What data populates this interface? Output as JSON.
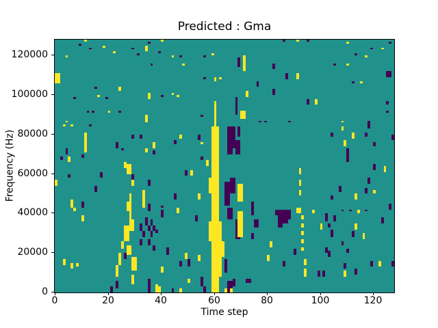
{
  "chart_data": {
    "type": "heatmap",
    "title": "Predicted : Gma",
    "xlabel": "Time step",
    "ylabel": "Frequency (Hz)",
    "x_ticks": [
      0,
      20,
      40,
      60,
      80,
      100,
      120
    ],
    "y_ticks": [
      0,
      20000,
      40000,
      60000,
      80000,
      100000,
      120000
    ],
    "x_range": [
      0,
      128
    ],
    "y_range": [
      0,
      128000
    ],
    "grid": [
      128,
      128
    ],
    "legend": "none",
    "grid_lines": false,
    "colors": {
      "background": "#21918c",
      "high": "#fde725",
      "low": "#440154",
      "spine": "#000000",
      "figure_background": "#ffffff"
    },
    "value_levels": {
      "low": 0,
      "mid": 0.5,
      "high": 1
    },
    "cells_note": "cells as [x_bin, y_bin, w, h]; y_bin 0 = 0 Hz (bottom), 1 bin = 1000 Hz; mid-level teal is the background",
    "cells": {
      "high": [
        [
          11,
          127,
          1,
          1
        ],
        [
          18,
          124,
          1,
          1
        ],
        [
          22,
          121,
          1,
          1
        ],
        [
          4,
          119,
          1,
          1
        ],
        [
          0,
          106,
          2,
          5
        ],
        [
          24,
          102,
          1,
          2
        ],
        [
          16,
          99,
          1,
          1
        ],
        [
          20,
          91,
          1,
          1
        ],
        [
          4,
          86,
          1,
          1
        ],
        [
          40,
          127,
          1,
          1
        ],
        [
          34,
          122,
          1,
          3
        ],
        [
          44,
          119,
          1,
          1
        ],
        [
          48,
          115,
          1,
          1
        ],
        [
          59,
          120,
          1,
          1
        ],
        [
          60,
          107,
          1,
          2
        ],
        [
          62,
          108,
          1,
          1
        ],
        [
          35,
          98,
          1,
          3
        ],
        [
          44,
          100,
          1,
          1
        ],
        [
          46,
          99,
          1,
          1
        ],
        [
          60,
          86,
          1,
          11
        ],
        [
          34,
          86,
          1,
          4
        ],
        [
          91,
          127,
          1,
          1
        ],
        [
          71,
          112,
          1,
          8
        ],
        [
          91,
          108,
          1,
          3
        ],
        [
          72,
          99,
          1,
          3
        ],
        [
          98,
          95,
          1,
          3
        ],
        [
          70,
          88,
          2,
          4
        ],
        [
          110,
          126,
          1,
          1
        ],
        [
          123,
          123,
          1,
          1
        ],
        [
          117,
          119,
          1,
          1
        ],
        [
          110,
          115,
          1,
          1
        ],
        [
          115,
          106,
          1,
          1
        ],
        [
          108,
          86,
          1,
          1
        ],
        [
          108,
          82,
          1,
          2
        ],
        [
          3,
          84,
          1,
          1
        ],
        [
          6,
          84,
          1,
          1
        ],
        [
          11,
          71,
          1,
          10
        ],
        [
          5,
          66,
          1,
          3
        ],
        [
          26,
          63,
          1,
          3
        ],
        [
          27,
          60,
          2,
          5
        ],
        [
          0,
          54,
          1,
          3
        ],
        [
          29,
          54,
          1,
          3
        ],
        [
          28,
          46,
          1,
          4
        ],
        [
          33,
          43,
          1,
          9
        ],
        [
          6,
          43,
          1,
          4
        ],
        [
          47,
          78,
          1,
          2
        ],
        [
          37,
          73,
          1,
          3
        ],
        [
          34,
          71,
          1,
          2
        ],
        [
          55,
          75,
          1,
          1
        ],
        [
          57,
          64,
          1,
          3
        ],
        [
          51,
          59,
          1,
          3
        ],
        [
          54,
          47,
          1,
          3
        ],
        [
          46,
          40,
          1,
          3
        ],
        [
          112,
          78,
          1,
          3
        ],
        [
          109,
          74,
          1,
          3
        ],
        [
          124,
          61,
          1,
          3
        ],
        [
          120,
          50,
          1,
          2
        ],
        [
          113,
          47,
          1,
          3
        ],
        [
          92,
          60,
          1,
          3
        ],
        [
          92,
          54,
          1,
          3
        ],
        [
          92,
          49,
          1,
          3
        ],
        [
          59,
          44,
          3,
          40
        ],
        [
          60,
          84,
          1,
          12
        ],
        [
          58,
          50,
          1,
          8
        ],
        [
          59,
          0,
          3,
          44
        ],
        [
          62,
          8,
          1,
          28
        ],
        [
          58,
          26,
          1,
          10
        ],
        [
          63,
          18,
          1,
          8
        ],
        [
          64,
          0,
          1,
          2
        ],
        [
          66,
          0,
          1,
          2
        ],
        [
          69,
          28,
          2,
          13
        ],
        [
          69,
          46,
          2,
          9
        ],
        [
          93,
          37,
          1,
          2
        ],
        [
          93,
          33,
          1,
          2
        ],
        [
          93,
          29,
          1,
          2
        ],
        [
          93,
          25,
          1,
          2
        ],
        [
          93,
          21,
          1,
          2
        ],
        [
          94,
          14,
          1,
          3
        ],
        [
          94,
          8,
          1,
          2
        ],
        [
          91,
          40,
          2,
          3
        ],
        [
          97,
          40,
          1,
          2
        ],
        [
          100,
          32,
          1,
          3
        ],
        [
          81,
          23,
          1,
          3
        ],
        [
          80,
          16,
          1,
          3
        ],
        [
          94,
          9,
          1,
          3
        ],
        [
          40,
          10,
          1,
          3
        ],
        [
          49,
          17,
          1,
          3
        ],
        [
          54,
          16,
          1,
          3
        ],
        [
          50,
          5,
          1,
          2
        ],
        [
          39,
          0,
          1,
          3
        ],
        [
          47,
          0,
          1,
          2
        ],
        [
          114,
          40,
          1,
          2
        ],
        [
          113,
          32,
          1,
          3
        ],
        [
          116,
          27,
          1,
          3
        ],
        [
          109,
          8,
          1,
          3
        ],
        [
          122,
          13,
          1,
          3
        ],
        [
          3,
          14,
          1,
          3
        ],
        [
          6,
          12,
          1,
          3
        ],
        [
          8,
          13,
          1,
          2
        ],
        [
          7,
          41,
          1,
          2
        ],
        [
          10,
          36,
          1,
          3
        ],
        [
          27,
          41,
          2,
          5
        ],
        [
          28,
          35,
          1,
          6
        ],
        [
          28,
          31,
          2,
          6
        ],
        [
          26,
          26,
          2,
          8
        ],
        [
          25,
          22,
          1,
          4
        ],
        [
          27,
          19,
          2,
          5
        ],
        [
          24,
          14,
          1,
          6
        ],
        [
          29,
          11,
          2,
          7
        ],
        [
          23,
          8,
          1,
          6
        ],
        [
          29,
          4,
          1,
          5
        ],
        [
          38,
          0,
          1,
          4
        ]
      ],
      "low": [
        [
          9,
          125,
          1,
          1
        ],
        [
          13,
          123,
          1,
          1
        ],
        [
          29,
          123,
          1,
          1
        ],
        [
          31,
          120,
          1,
          1
        ],
        [
          15,
          103,
          1,
          1
        ],
        [
          7,
          98,
          1,
          1
        ],
        [
          19,
          98,
          1,
          1
        ],
        [
          12,
          91,
          1,
          1
        ],
        [
          14,
          91,
          1,
          1
        ],
        [
          24,
          91,
          1,
          1
        ],
        [
          35,
          126,
          1,
          1
        ],
        [
          39,
          121,
          1,
          1
        ],
        [
          36,
          115,
          1,
          1
        ],
        [
          47,
          119,
          1,
          1
        ],
        [
          56,
          119,
          1,
          1
        ],
        [
          56,
          108,
          1,
          1
        ],
        [
          40,
          99,
          1,
          1
        ],
        [
          55,
          89,
          1,
          1
        ],
        [
          68,
          90,
          1,
          9
        ],
        [
          69,
          114,
          1,
          5
        ],
        [
          86,
          127,
          1,
          1
        ],
        [
          95,
          127,
          1,
          1
        ],
        [
          82,
          113,
          1,
          3
        ],
        [
          87,
          108,
          1,
          3
        ],
        [
          76,
          104,
          1,
          3
        ],
        [
          82,
          100,
          1,
          3
        ],
        [
          95,
          95,
          1,
          3
        ],
        [
          77,
          86,
          1,
          1
        ],
        [
          79,
          86,
          1,
          1
        ],
        [
          88,
          86,
          1,
          1
        ],
        [
          126,
          126,
          1,
          1
        ],
        [
          119,
          123,
          1,
          1
        ],
        [
          113,
          120,
          1,
          1
        ],
        [
          105,
          115,
          1,
          1
        ],
        [
          125,
          109,
          2,
          3
        ],
        [
          112,
          106,
          1,
          1
        ],
        [
          125,
          95,
          1,
          2
        ],
        [
          125,
          91,
          1,
          1
        ],
        [
          118,
          85,
          1,
          2
        ],
        [
          13,
          84,
          1,
          1
        ],
        [
          29,
          78,
          1,
          2
        ],
        [
          32,
          78,
          1,
          2
        ],
        [
          23,
          73,
          1,
          3
        ],
        [
          25,
          72,
          1,
          1
        ],
        [
          4,
          70,
          1,
          3
        ],
        [
          2,
          67,
          1,
          2
        ],
        [
          10,
          68,
          1,
          2
        ],
        [
          17,
          58,
          1,
          3
        ],
        [
          5,
          58,
          1,
          2
        ],
        [
          29,
          57,
          1,
          3
        ],
        [
          15,
          51,
          1,
          3
        ],
        [
          10,
          43,
          1,
          3
        ],
        [
          54,
          77,
          1,
          3
        ],
        [
          45,
          75,
          1,
          2
        ],
        [
          37,
          70,
          1,
          2
        ],
        [
          55,
          67,
          1,
          2
        ],
        [
          49,
          59,
          1,
          3
        ],
        [
          35,
          54,
          1,
          3
        ],
        [
          45,
          47,
          1,
          3
        ],
        [
          40,
          43,
          1,
          1
        ],
        [
          104,
          79,
          1,
          2
        ],
        [
          118,
          83,
          1,
          2
        ],
        [
          117,
          79,
          1,
          2
        ],
        [
          127,
          77,
          1,
          3
        ],
        [
          110,
          66,
          1,
          7
        ],
        [
          120,
          74,
          1,
          2
        ],
        [
          120,
          62,
          1,
          3
        ],
        [
          118,
          55,
          1,
          3
        ],
        [
          117,
          50,
          1,
          3
        ],
        [
          107,
          51,
          1,
          3
        ],
        [
          104,
          47,
          1,
          2
        ],
        [
          126,
          42,
          1,
          3
        ],
        [
          65,
          70,
          2,
          14
        ],
        [
          67,
          73,
          1,
          11
        ],
        [
          68,
          70,
          2,
          7
        ],
        [
          69,
          79,
          1,
          5
        ],
        [
          64,
          44,
          2,
          12
        ],
        [
          66,
          50,
          2,
          8
        ],
        [
          65,
          37,
          2,
          6
        ],
        [
          68,
          27,
          2,
          10
        ],
        [
          64,
          10,
          1,
          7
        ],
        [
          65,
          0,
          2,
          6
        ],
        [
          67,
          3,
          1,
          4
        ],
        [
          74,
          39,
          1,
          7
        ],
        [
          75,
          33,
          2,
          4
        ],
        [
          74,
          27,
          1,
          3
        ],
        [
          72,
          5,
          2,
          2
        ],
        [
          35,
          41,
          1,
          4
        ],
        [
          34,
          34,
          1,
          4
        ],
        [
          36,
          34,
          1,
          3
        ],
        [
          32,
          31,
          1,
          4
        ],
        [
          35,
          31,
          1,
          3
        ],
        [
          37,
          31,
          1,
          3
        ],
        [
          33,
          28,
          1,
          3
        ],
        [
          36,
          28,
          1,
          3
        ],
        [
          32,
          24,
          1,
          3
        ],
        [
          35,
          24,
          1,
          3
        ],
        [
          37,
          21,
          1,
          3
        ],
        [
          38,
          30,
          1,
          2
        ],
        [
          26,
          17,
          1,
          3
        ],
        [
          23,
          2,
          1,
          4
        ],
        [
          21,
          0,
          1,
          3
        ],
        [
          35,
          0,
          1,
          7
        ],
        [
          42,
          19,
          1,
          4
        ],
        [
          47,
          13,
          1,
          3
        ],
        [
          50,
          13,
          1,
          4
        ],
        [
          55,
          3,
          1,
          5
        ],
        [
          44,
          0,
          1,
          2
        ],
        [
          56,
          0,
          1,
          3
        ],
        [
          40,
          38,
          1,
          4
        ],
        [
          53,
          36,
          1,
          3
        ],
        [
          84,
          33,
          2,
          9
        ],
        [
          86,
          35,
          2,
          7
        ],
        [
          88,
          37,
          1,
          5
        ],
        [
          83,
          39,
          1,
          3
        ],
        [
          90,
          19,
          1,
          3
        ],
        [
          86,
          13,
          1,
          3
        ],
        [
          102,
          36,
          1,
          4
        ],
        [
          104,
          28,
          1,
          4
        ],
        [
          102,
          20,
          1,
          3
        ],
        [
          99,
          8,
          1,
          3
        ],
        [
          101,
          8,
          1,
          3
        ],
        [
          108,
          41,
          1,
          1
        ],
        [
          111,
          41,
          1,
          1
        ],
        [
          117,
          41,
          1,
          1
        ],
        [
          105,
          36,
          1,
          3
        ],
        [
          103,
          33,
          1,
          2
        ],
        [
          123,
          35,
          1,
          3
        ],
        [
          112,
          28,
          1,
          3
        ],
        [
          108,
          24,
          1,
          2
        ],
        [
          110,
          20,
          1,
          2
        ],
        [
          103,
          18,
          1,
          3
        ],
        [
          109,
          12,
          1,
          3
        ],
        [
          113,
          9,
          1,
          3
        ],
        [
          119,
          13,
          1,
          3
        ],
        [
          127,
          13,
          1,
          3
        ]
      ]
    }
  }
}
